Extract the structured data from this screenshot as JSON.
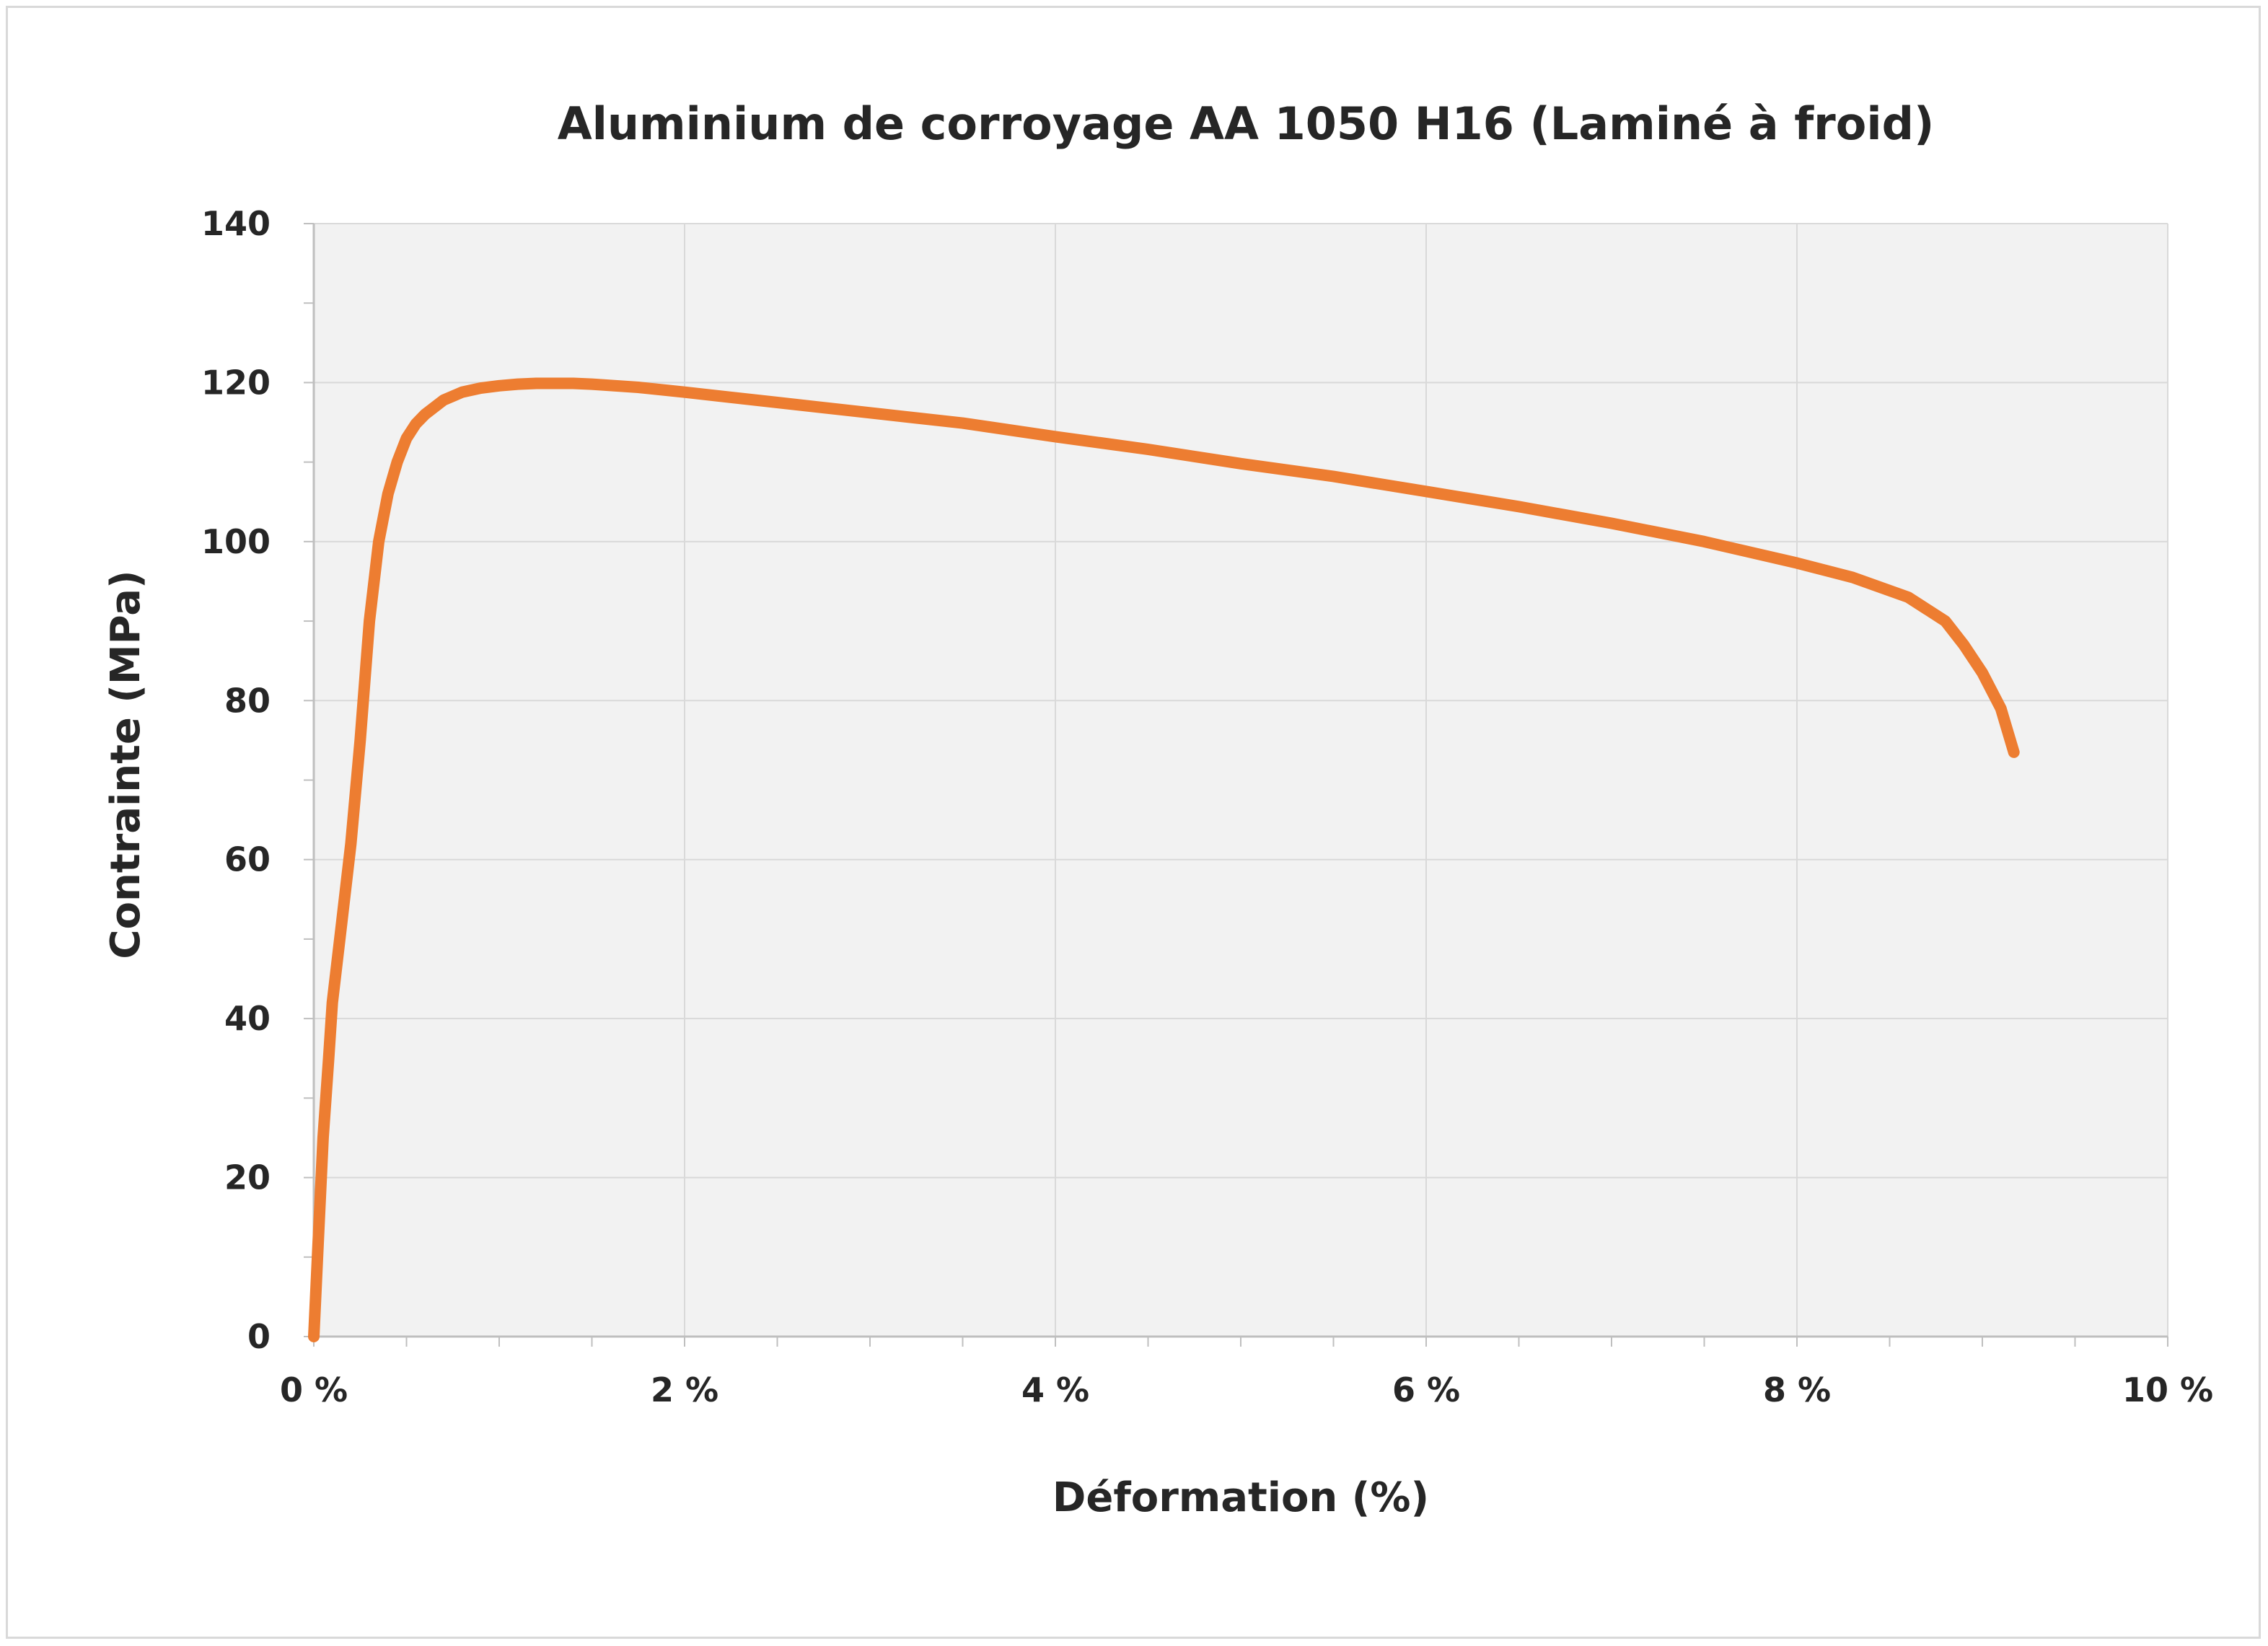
{
  "chart_data": {
    "type": "line",
    "title": "Aluminium de corroyage AA 1050 H16 (Laminé à froid)",
    "xlabel": "Déformation (%)",
    "ylabel": "Contrainte (MPa)",
    "xlim": [
      0,
      10
    ],
    "ylim": [
      0,
      140
    ],
    "x_ticks": [
      0,
      2,
      4,
      6,
      8,
      10
    ],
    "x_tick_labels": [
      "0 %",
      "2 %",
      "4 %",
      "6 %",
      "8 %",
      "10 %"
    ],
    "y_ticks": [
      0,
      20,
      40,
      60,
      80,
      100,
      120,
      140
    ],
    "y_tick_labels": [
      "0",
      "20",
      "40",
      "60",
      "80",
      "100",
      "120",
      "140"
    ],
    "grid": true,
    "legend": "none",
    "colors": {
      "series": "#ed7d31",
      "grid": "#d9d9d9",
      "plot_bg": "#f2f2f2",
      "axis": "#bfbfbf"
    },
    "series": [
      {
        "x": [
          0,
          0.02,
          0.05,
          0.08,
          0.1,
          0.15,
          0.2,
          0.25,
          0.3,
          0.35,
          0.4,
          0.45,
          0.5,
          0.55,
          0.6,
          0.7,
          0.8,
          0.9,
          1.0,
          1.1,
          1.2,
          1.3,
          1.4,
          1.5,
          1.75,
          2.0,
          2.5,
          3.0,
          3.5,
          4.0,
          4.5,
          5.0,
          5.5,
          6.0,
          6.5,
          7.0,
          7.5,
          8.0,
          8.3,
          8.6,
          8.8,
          8.9,
          9.0,
          9.1,
          9.17
        ],
        "y": [
          0,
          10,
          25,
          35,
          42,
          52,
          62,
          75,
          90,
          100,
          106,
          110,
          113,
          114.8,
          116,
          117.8,
          118.8,
          119.3,
          119.6,
          119.8,
          119.9,
          119.9,
          119.9,
          119.8,
          119.4,
          118.8,
          117.5,
          116.2,
          114.9,
          113.2,
          111.6,
          109.8,
          108.2,
          106.3,
          104.4,
          102.3,
          100,
          97.3,
          95.5,
          93,
          90,
          87,
          83.5,
          79,
          73.5
        ]
      }
    ]
  }
}
